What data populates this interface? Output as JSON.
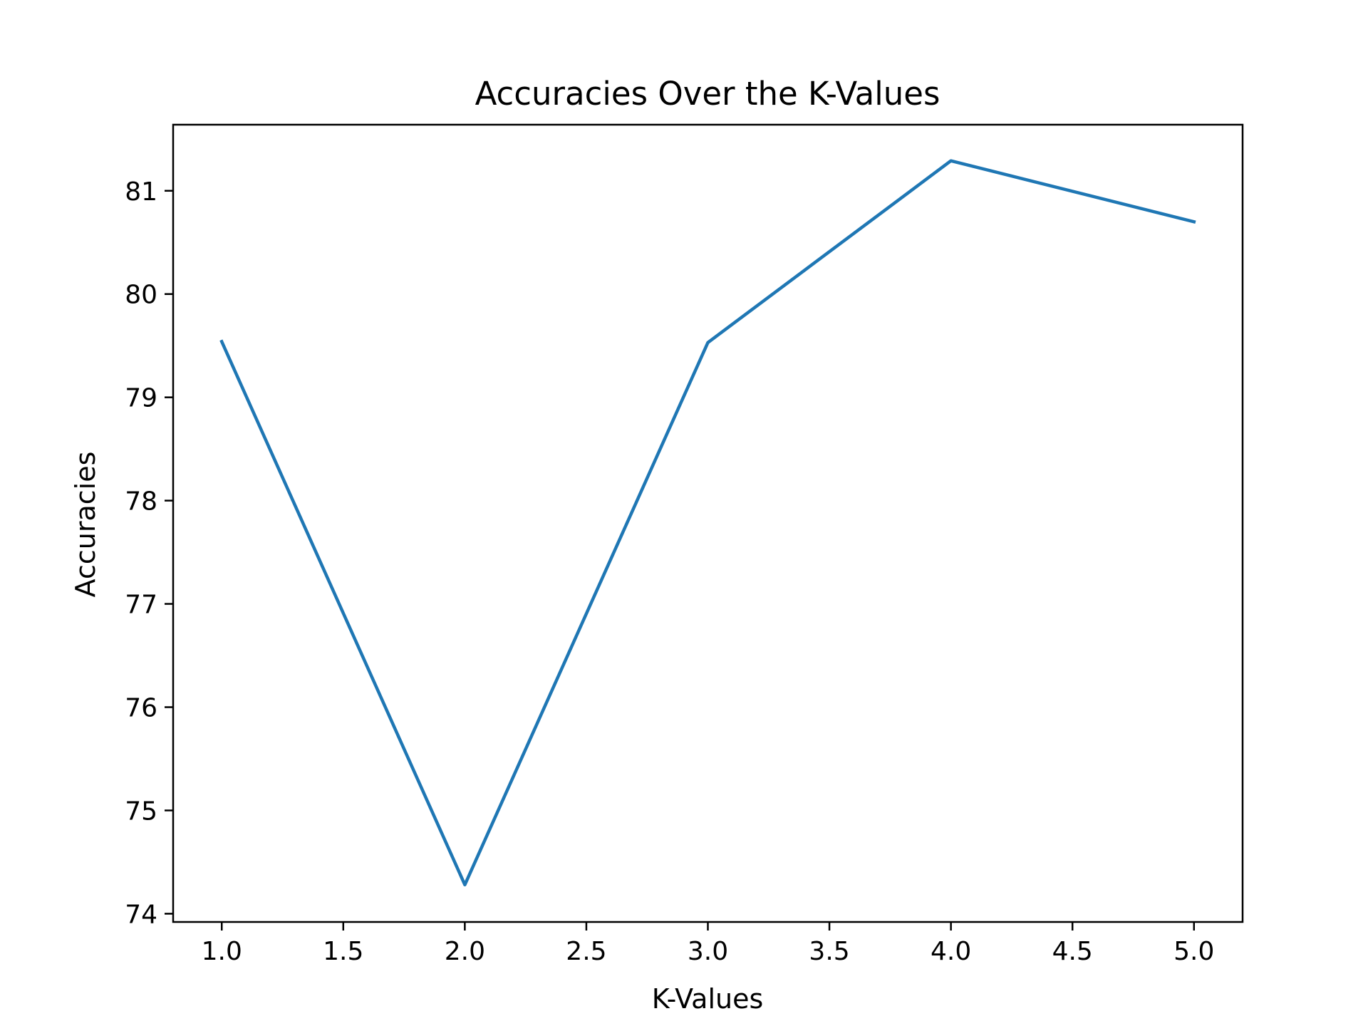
{
  "chart_data": {
    "type": "line",
    "title": "Accuracies Over the K-Values",
    "xlabel": "K-Values",
    "ylabel": "Accuracies",
    "xlim": [
      0.8,
      5.2
    ],
    "ylim": [
      73.92,
      81.64
    ],
    "xticks": [
      1.0,
      1.5,
      2.0,
      2.5,
      3.0,
      3.5,
      4.0,
      4.5,
      5.0
    ],
    "xtick_labels": [
      "1.0",
      "1.5",
      "2.0",
      "2.5",
      "3.0",
      "3.5",
      "4.0",
      "4.5",
      "5.0"
    ],
    "yticks": [
      74,
      75,
      76,
      77,
      78,
      79,
      80,
      81
    ],
    "ytick_labels": [
      "74",
      "75",
      "76",
      "77",
      "78",
      "79",
      "80",
      "81"
    ],
    "grid": false,
    "series": [
      {
        "x": [
          1,
          2,
          3,
          4,
          5
        ],
        "values": [
          79.54,
          74.28,
          79.53,
          81.29,
          80.7
        ],
        "color": "#1f77b4"
      }
    ]
  }
}
